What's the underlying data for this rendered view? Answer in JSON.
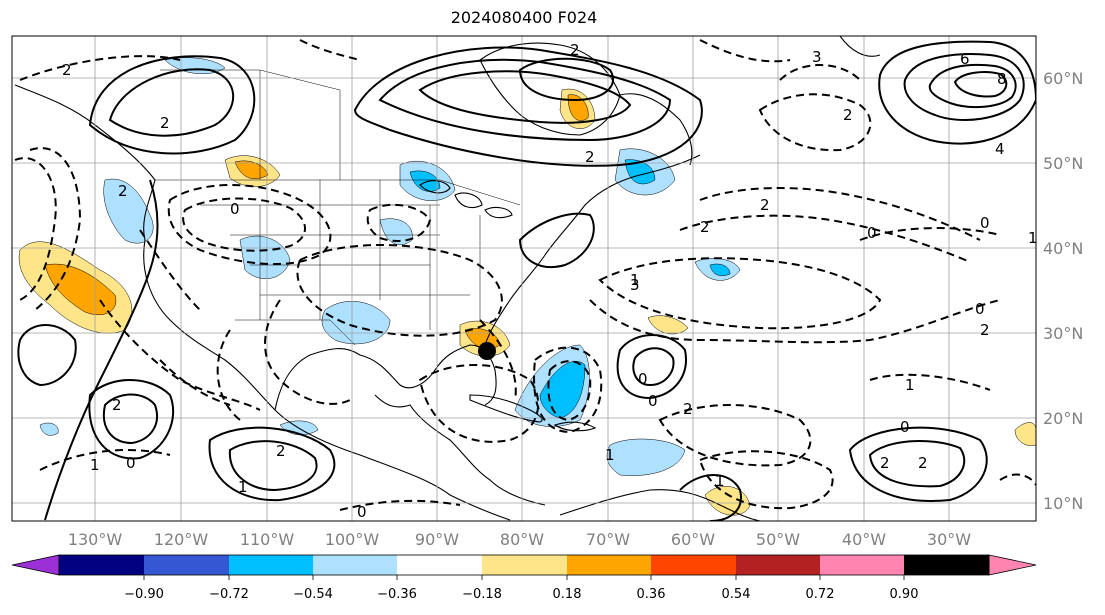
{
  "title": "2024080400 F024",
  "lat_labels": [
    "60°N",
    "50°N",
    "40°N",
    "30°N",
    "20°N",
    "10°N"
  ],
  "lon_labels": [
    "130°W",
    "120°W",
    "110°W",
    "100°W",
    "90°W",
    "80°W",
    "70°W",
    "60°W",
    "50°W",
    "40°W",
    "30°W"
  ],
  "colorbar": {
    "colors": [
      "#9b30d6",
      "#000080",
      "#3557d4",
      "#00bfff",
      "#aee0ff",
      "#ffffff",
      "#ffe58a",
      "#ffa500",
      "#ff4500",
      "#b22222",
      "#ff85b0"
    ],
    "ticks": [
      "−0.90",
      "−0.72",
      "−0.54",
      "−0.36",
      "−0.18",
      "0.18",
      "0.36",
      "0.54",
      "0.72",
      "0.90"
    ]
  },
  "contour_labels": [
    "2",
    "2",
    "2",
    "2",
    "2",
    "6",
    "8",
    "4",
    "3",
    "2",
    "2",
    "1",
    "1",
    "1",
    "2",
    "2",
    "3",
    "0",
    "0",
    "0",
    "0",
    "2",
    "1",
    "1",
    "2",
    "2",
    "0",
    "0",
    "1",
    "2",
    "2",
    "0",
    "0",
    "0",
    "1"
  ],
  "marker": {
    "lon": -81.8,
    "lat": 28.0,
    "color": "#000000"
  }
}
